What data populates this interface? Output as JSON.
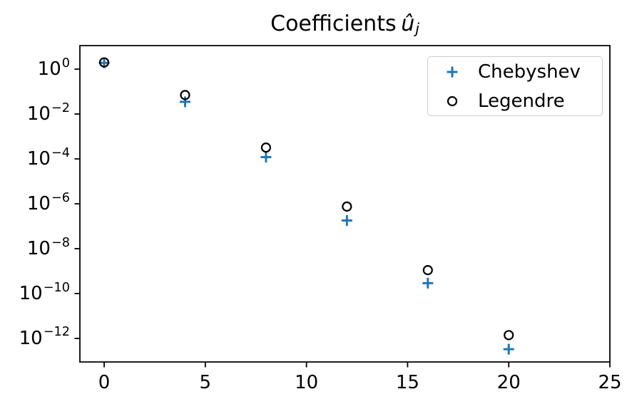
{
  "title": {
    "prefix": "Coefficients",
    "math_variable": "û",
    "subscript": "j"
  },
  "legend": {
    "entries": [
      {
        "label": "Chebyshev",
        "marker": "plus",
        "color": "#1f77b4"
      },
      {
        "label": "Legendre",
        "marker": "circle",
        "color": "#000000"
      }
    ]
  },
  "chart_data": {
    "type": "scatter",
    "title": "Coefficients û_j",
    "xlabel": "",
    "ylabel": "",
    "yscale": "log",
    "x": [
      0,
      4,
      8,
      12,
      16,
      20
    ],
    "series": [
      {
        "name": "Chebyshev",
        "marker": "plus",
        "color": "#1f77b4",
        "values": [
          1.9,
          0.035,
          0.00012,
          1.8e-07,
          2.9e-10,
          3.3e-13
        ]
      },
      {
        "name": "Legendre",
        "marker": "circle",
        "color": "#000000",
        "values": [
          2.0,
          0.07,
          0.00032,
          7.5e-07,
          1.1e-09,
          1.4e-12
        ]
      }
    ],
    "xlim": [
      -1.2,
      25.0
    ],
    "ylim": [
      8.9e-14,
      11.2
    ],
    "xticks": [
      0,
      5,
      10,
      15,
      20,
      25
    ],
    "ytick_exponents": [
      0,
      -2,
      -4,
      -6,
      -8,
      -10,
      -12
    ],
    "grid": false,
    "legend_position": "upper right",
    "axis_color": "#000000",
    "background_color": "#ffffff"
  }
}
